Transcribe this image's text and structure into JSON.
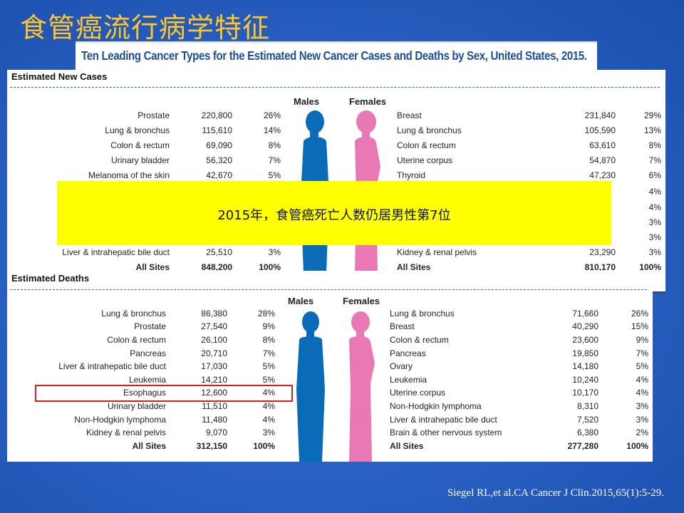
{
  "slide_title": "食管癌流行病学特征",
  "chart_title": "Ten Leading Cancer Types for the Estimated New Cancer Cases and Deaths by Sex, United States, 2015.",
  "new_cases": {
    "section_title": "Estimated New Cases",
    "males_label": "Males",
    "females_label": "Females",
    "males": [
      {
        "site": "Prostate",
        "count": "220,800",
        "pct": "26%"
      },
      {
        "site": "Lung & bronchus",
        "count": "115,610",
        "pct": "14%"
      },
      {
        "site": "Colon & rectum",
        "count": "69,090",
        "pct": "8%"
      },
      {
        "site": "Urinary bladder",
        "count": "56,320",
        "pct": "7%"
      },
      {
        "site": "Melanoma of the skin",
        "count": "42,670",
        "pct": "5%"
      },
      {
        "site": "Liver & intrahepatic bile duct",
        "count": "25,510",
        "pct": "3%"
      },
      {
        "site": "All Sites",
        "count": "848,200",
        "pct": "100%"
      }
    ],
    "females": [
      {
        "site": "Breast",
        "count": "231,840",
        "pct": "29%"
      },
      {
        "site": "Lung & bronchus",
        "count": "105,590",
        "pct": "13%"
      },
      {
        "site": "Colon & rectum",
        "count": "63,610",
        "pct": "8%"
      },
      {
        "site": "Uterine corpus",
        "count": "54,870",
        "pct": "7%"
      },
      {
        "site": "Thyroid",
        "count": "47,230",
        "pct": "6%"
      },
      {
        "site": "",
        "count": "",
        "pct": "4%"
      },
      {
        "site": "",
        "count": "",
        "pct": "4%"
      },
      {
        "site": "",
        "count": "",
        "pct": "3%"
      },
      {
        "site": "",
        "count": "",
        "pct": "3%"
      },
      {
        "site": "Kidney & renal pelvis",
        "count": "23,290",
        "pct": "3%"
      },
      {
        "site": "All Sites",
        "count": "810,170",
        "pct": "100%"
      }
    ]
  },
  "deaths": {
    "section_title": "Estimated Deaths",
    "males_label": "Males",
    "females_label": "Females",
    "males": [
      {
        "site": "Lung & bronchus",
        "count": "86,380",
        "pct": "28%"
      },
      {
        "site": "Prostate",
        "count": "27,540",
        "pct": "9%"
      },
      {
        "site": "Colon & rectum",
        "count": "26,100",
        "pct": "8%"
      },
      {
        "site": "Pancreas",
        "count": "20,710",
        "pct": "7%"
      },
      {
        "site": "Liver & intrahepatic bile duct",
        "count": "17,030",
        "pct": "5%"
      },
      {
        "site": "Leukemia",
        "count": "14,210",
        "pct": "5%"
      },
      {
        "site": "Esophagus",
        "count": "12,600",
        "pct": "4%"
      },
      {
        "site": "Urinary bladder",
        "count": "11,510",
        "pct": "4%"
      },
      {
        "site": "Non-Hodgkin lymphoma",
        "count": "11,480",
        "pct": "4%"
      },
      {
        "site": "Kidney & renal pelvis",
        "count": "9,070",
        "pct": "3%"
      },
      {
        "site": "All Sites",
        "count": "312,150",
        "pct": "100%"
      }
    ],
    "females": [
      {
        "site": "Lung & bronchus",
        "count": "71,660",
        "pct": "26%"
      },
      {
        "site": "Breast",
        "count": "40,290",
        "pct": "15%"
      },
      {
        "site": "Colon & rectum",
        "count": "23,600",
        "pct": "9%"
      },
      {
        "site": "Pancreas",
        "count": "19,850",
        "pct": "7%"
      },
      {
        "site": "Ovary",
        "count": "14,180",
        "pct": "5%"
      },
      {
        "site": "Leukemia",
        "count": "10,240",
        "pct": "4%"
      },
      {
        "site": "Uterine corpus",
        "count": "10,170",
        "pct": "4%"
      },
      {
        "site": "Non-Hodgkin lymphoma",
        "count": "8,310",
        "pct": "3%"
      },
      {
        "site": "Liver & intrahepatic bile duct",
        "count": "7,520",
        "pct": "3%"
      },
      {
        "site": "Brain & other nervous system",
        "count": "6,380",
        "pct": "2%"
      },
      {
        "site": "All Sites",
        "count": "277,280",
        "pct": "100%"
      }
    ]
  },
  "callout_text": "2015年，食管癌死亡人数仍居男性第7位",
  "citation": "Siegel RL,et al.CA Cancer J Clin.2015,65(1):5-29.",
  "colors": {
    "title": "#ffc629",
    "male_figure": "#0a6cb8",
    "female_figure": "#e879b4",
    "callout_bg": "#ffff00",
    "highlight_border": "#d42020"
  }
}
